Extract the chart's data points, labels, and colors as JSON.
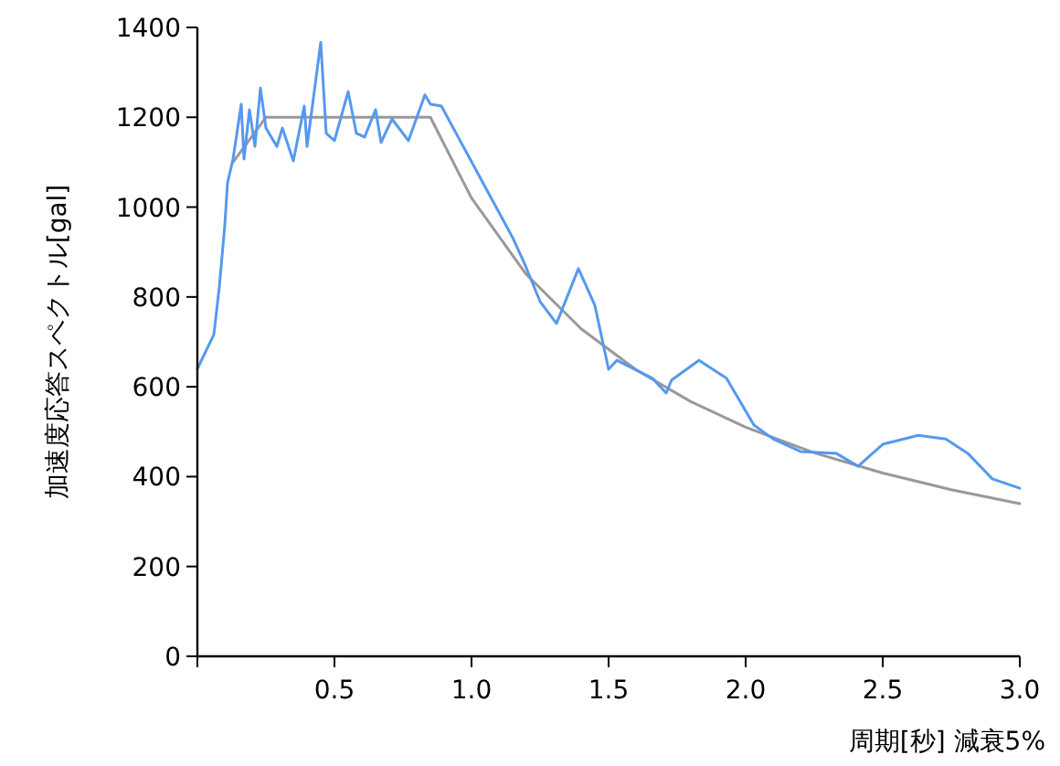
{
  "chart_data": {
    "type": "line",
    "xlabel": "周期[秒] 減衰5%",
    "ylabel": "加速度応答スペクトル[gal]",
    "xlim": [
      0,
      3
    ],
    "ylim": [
      0,
      1400
    ],
    "xticks": [
      {
        "value": 0,
        "label": null
      },
      0.5,
      {
        "value": 1,
        "label": "1.0"
      },
      1.5,
      {
        "value": 2,
        "label": "2.0"
      },
      2.5,
      {
        "value": 3,
        "label": "3.0"
      }
    ],
    "yticks": [
      0,
      200,
      400,
      600,
      800,
      1000,
      1200,
      1400
    ],
    "series": [
      {
        "color": "#999999",
        "x": [
          0.13,
          0.25,
          0.85,
          1.0,
          1.2,
          1.4,
          1.6,
          1.8,
          2.0,
          2.25,
          2.5,
          2.75,
          3.0
        ],
        "values": [
          1100,
          1200,
          1200,
          1020,
          850,
          729,
          638,
          567,
          510,
          453,
          408,
          371,
          340
        ]
      },
      {
        "color": "#5599ee",
        "x": [
          0,
          0.06,
          0.08,
          0.1,
          0.11,
          0.13,
          0.16,
          0.17,
          0.19,
          0.21,
          0.23,
          0.25,
          0.29,
          0.31,
          0.35,
          0.39,
          0.4,
          0.45,
          0.47,
          0.5,
          0.55,
          0.58,
          0.61,
          0.65,
          0.67,
          0.71,
          0.77,
          0.83,
          0.85,
          0.89,
          1.15,
          1.19,
          1.25,
          1.31,
          1.39,
          1.45,
          1.5,
          1.53,
          1.66,
          1.71,
          1.73,
          1.83,
          1.93,
          2.03,
          2.1,
          2.2,
          2.33,
          2.41,
          2.5,
          2.63,
          2.73,
          2.81,
          2.9,
          3.0
        ],
        "values": [
          640,
          716,
          822,
          960,
          1054,
          1107,
          1229,
          1107,
          1217,
          1135,
          1265,
          1176,
          1135,
          1176,
          1103,
          1225,
          1135,
          1367,
          1164,
          1148,
          1257,
          1164,
          1156,
          1217,
          1144,
          1196,
          1148,
          1250,
          1229,
          1225,
          932,
          879,
          790,
          741,
          863,
          781,
          639,
          659,
          619,
          586,
          615,
          659,
          619,
          515,
          484,
          456,
          452,
          423,
          472,
          492,
          484,
          452,
          395,
          374
        ]
      }
    ]
  }
}
